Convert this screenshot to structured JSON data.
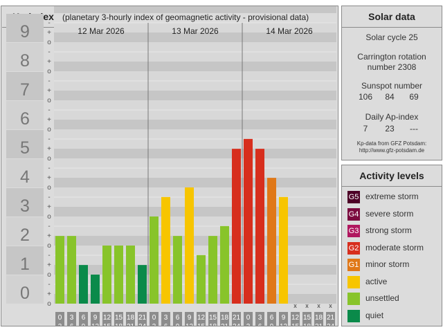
{
  "kp": {
    "title": "Kp-index",
    "subtitle": "(planetary 3-hourly index of geomagnetic activity - provisional data)",
    "days": [
      "12 Mar 2026",
      "13 Mar 2026",
      "14 Mar 2026"
    ]
  },
  "solar": {
    "title": "Solar data",
    "cycle": "Solar cycle 25",
    "carrington_1": "Carrington rotation",
    "carrington_2": "number 2308",
    "sunspot_label": "Sunspot number",
    "sunspot": [
      "106",
      "84",
      "69"
    ],
    "ap_label": "Daily Ap-index",
    "ap": [
      "7",
      "23",
      "---"
    ],
    "source_1": "Kp-data from GFZ Potsdam:",
    "source_2": "http://www.gfz-potsdam.de"
  },
  "activity": {
    "title": "Activity levels",
    "levels": [
      {
        "code": "G5",
        "label": "extreme storm",
        "color": "#4d0026"
      },
      {
        "code": "G4",
        "label": "severe storm",
        "color": "#7b0a3e"
      },
      {
        "code": "G3",
        "label": "strong storm",
        "color": "#b0175f"
      },
      {
        "code": "G2",
        "label": "moderate storm",
        "color": "#d72e1d"
      },
      {
        "code": "G1",
        "label": "minor storm",
        "color": "#e07818"
      },
      {
        "code": "",
        "label": "active",
        "color": "#f7c500"
      },
      {
        "code": "",
        "label": "unsettled",
        "color": "#88c42a"
      },
      {
        "code": "",
        "label": "quiet",
        "color": "#0a8a4a"
      }
    ]
  },
  "chart_data": {
    "type": "bar",
    "yticks": [
      "0",
      "1",
      "2",
      "3",
      "4",
      "5",
      "6",
      "7",
      "8",
      "9"
    ],
    "minor_ticks": [
      "o",
      "+",
      "-"
    ],
    "ylim": [
      0,
      9
    ],
    "grid": true,
    "missing_marker": "x",
    "categories": [
      "0-3",
      "3-6",
      "6-9",
      "9-12",
      "12-15",
      "15-18",
      "18-21",
      "21-24",
      "0-3",
      "3-6",
      "6-9",
      "9-12",
      "12-15",
      "15-18",
      "18-21",
      "21-24",
      "0-3",
      "3-6",
      "6-9",
      "9-12",
      "12-15",
      "15-18",
      "18-21",
      "21-24"
    ],
    "hour_labels": [
      [
        "0",
        "3"
      ],
      [
        "3",
        "6"
      ],
      [
        "6",
        "9"
      ],
      [
        "9",
        "12"
      ],
      [
        "12",
        "15"
      ],
      [
        "15",
        "18"
      ],
      [
        "18",
        "21"
      ],
      [
        "21",
        "24"
      ]
    ],
    "values": [
      2.33,
      2.33,
      1.33,
      1.0,
      2.0,
      2.0,
      2.0,
      1.33,
      3.0,
      3.67,
      2.33,
      4.0,
      1.67,
      2.33,
      2.67,
      5.33,
      5.67,
      5.33,
      4.33,
      3.67,
      null,
      null,
      null,
      null
    ],
    "colors": [
      "#88c42a",
      "#88c42a",
      "#0a8a4a",
      "#0a8a4a",
      "#88c42a",
      "#88c42a",
      "#88c42a",
      "#0a8a4a",
      "#88c42a",
      "#f7c500",
      "#88c42a",
      "#f7c500",
      "#88c42a",
      "#88c42a",
      "#88c42a",
      "#d72e1d",
      "#d72e1d",
      "#d72e1d",
      "#e07818",
      "#f7c500",
      "",
      "",
      "",
      ""
    ]
  }
}
